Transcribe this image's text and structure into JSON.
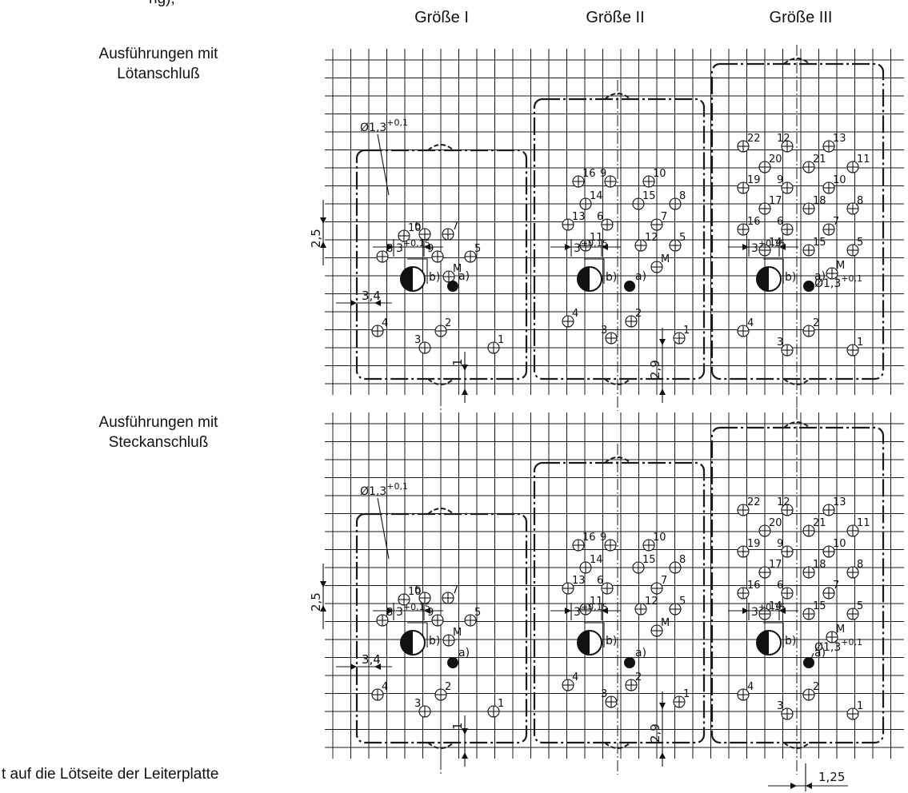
{
  "header_fragment": "ng), ",
  "columns": [
    {
      "title": "Größe I"
    },
    {
      "title": "Größe II"
    },
    {
      "title": "Größe III"
    }
  ],
  "row_labels": {
    "soldered": [
      "Ausführungen mit",
      "Lötanschluß"
    ],
    "plug": [
      "Ausführungen mit",
      "Steckanschluß"
    ]
  },
  "caption": "t auf die Lötseite der Leiterplatte",
  "annotations": {
    "hole_diameter": "Ø1,3",
    "hole_tolerance": "+0,1",
    "pitch_value": "3",
    "pitch_tolerance": "+0,15",
    "grid_spacing": "2,5",
    "edge_offset": "3,4",
    "notch_depth": "1",
    "pin_offset": "2,9",
    "axis_offset": "1,25",
    "keying_note": "b)",
    "marker_note": "a)"
  },
  "pins": {
    "size_1": [
      "10",
      "6",
      "7",
      "8",
      "9",
      "5",
      "M",
      "4",
      "2",
      "3",
      "1"
    ],
    "size_2": [
      "16",
      "9",
      "10",
      "14",
      "15",
      "8",
      "13",
      "6",
      "7",
      "11",
      "12",
      "5",
      "M",
      "4",
      "2",
      "3",
      "1"
    ],
    "size_3": [
      "22",
      "12",
      "13",
      "20",
      "21",
      "11",
      "19",
      "9",
      "10",
      "17",
      "18",
      "8",
      "16",
      "6",
      "7",
      "14",
      "15",
      "5",
      "M",
      "4",
      "2",
      "3",
      "1"
    ]
  }
}
